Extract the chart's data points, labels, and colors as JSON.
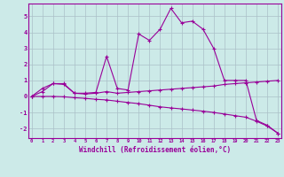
{
  "xlabel": "Windchill (Refroidissement éolien,°C)",
  "bg_color": "#cceae8",
  "grid_color": "#aac0c8",
  "line_color": "#990099",
  "xlim": [
    -0.3,
    23.3
  ],
  "ylim": [
    -2.6,
    5.8
  ],
  "x_ticks": [
    0,
    1,
    2,
    3,
    4,
    5,
    6,
    7,
    8,
    9,
    10,
    11,
    12,
    13,
    14,
    15,
    16,
    17,
    18,
    19,
    20,
    21,
    22,
    23
  ],
  "yticks": [
    -2,
    -1,
    0,
    1,
    2,
    3,
    4,
    5
  ],
  "series1_x": [
    0,
    1,
    2,
    3,
    4,
    5,
    6,
    7,
    8,
    9,
    10,
    11,
    12,
    13,
    14,
    15,
    16,
    17,
    18,
    19,
    20,
    21,
    22,
    23
  ],
  "series1_y": [
    0.0,
    0.5,
    0.8,
    0.8,
    0.2,
    0.2,
    0.25,
    2.5,
    0.5,
    0.4,
    3.9,
    3.5,
    4.2,
    5.5,
    4.6,
    4.7,
    4.2,
    3.0,
    1.0,
    1.0,
    1.0,
    -1.5,
    -1.8,
    -2.3
  ],
  "series2_x": [
    0,
    1,
    2,
    3,
    4,
    5,
    6,
    7,
    8,
    9,
    10,
    11,
    12,
    13,
    14,
    15,
    16,
    17,
    18,
    19,
    20,
    21,
    22,
    23
  ],
  "series2_y": [
    0.0,
    0.3,
    0.8,
    0.75,
    0.2,
    0.15,
    0.2,
    0.3,
    0.2,
    0.25,
    0.3,
    0.35,
    0.4,
    0.45,
    0.5,
    0.55,
    0.6,
    0.65,
    0.75,
    0.8,
    0.85,
    0.9,
    0.95,
    1.0
  ],
  "series3_x": [
    0,
    1,
    2,
    3,
    4,
    5,
    6,
    7,
    8,
    9,
    10,
    11,
    12,
    13,
    14,
    15,
    16,
    17,
    18,
    19,
    20,
    21,
    22,
    23
  ],
  "series3_y": [
    0.0,
    0.0,
    0.0,
    -0.02,
    -0.08,
    -0.12,
    -0.18,
    -0.22,
    -0.3,
    -0.38,
    -0.45,
    -0.55,
    -0.65,
    -0.72,
    -0.78,
    -0.85,
    -0.92,
    -1.0,
    -1.1,
    -1.2,
    -1.3,
    -1.55,
    -1.85,
    -2.3
  ]
}
